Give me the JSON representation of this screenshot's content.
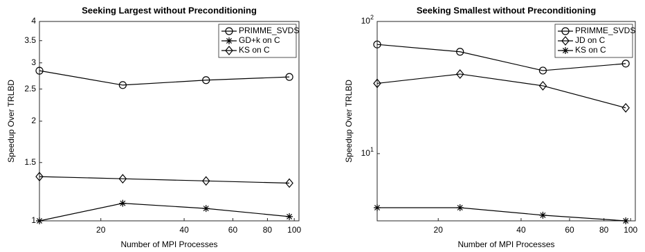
{
  "chart_data": [
    {
      "type": "line",
      "title": "Seeking Largest without Preconditioning",
      "xlabel": "Number of MPI Processes",
      "ylabel": "Speedup Over TRLBD",
      "x": [
        12,
        24,
        48,
        96
      ],
      "xscale": "log",
      "yscale": "log",
      "xlim": [
        12,
        104
      ],
      "xticks": [
        20,
        40,
        60,
        80,
        100
      ],
      "ylim": [
        1,
        4
      ],
      "yticks": [
        1,
        1.5,
        2,
        2.5,
        3,
        3.5,
        4
      ],
      "legend": "upper right",
      "series": [
        {
          "name": "PRIMME_SVDS",
          "color": "#000000",
          "marker": "circle",
          "values": [
            2.84,
            2.57,
            2.66,
            2.72
          ]
        },
        {
          "name": "GD+k on C",
          "color": "#000000",
          "marker": "asterisk",
          "values": [
            1.0,
            1.13,
            1.09,
            1.03
          ]
        },
        {
          "name": "KS on C",
          "color": "#000000",
          "marker": "diamond",
          "values": [
            1.36,
            1.34,
            1.32,
            1.3
          ]
        }
      ]
    },
    {
      "type": "line",
      "title": "Seeking Smallest without Preconditioning",
      "xlabel": "Number of MPI Processes",
      "ylabel": "Speedup Over TRLBD",
      "x": [
        12,
        24,
        48,
        96
      ],
      "xscale": "log",
      "yscale": "log",
      "xlim": [
        12,
        104
      ],
      "xticks": [
        20,
        40,
        60,
        80,
        100
      ],
      "ylim": [
        3.1,
        100
      ],
      "yticks": [
        {
          "value": 10,
          "label": "10^1"
        },
        {
          "value": 100,
          "label": "10^2"
        }
      ],
      "legend": "upper right",
      "series": [
        {
          "name": "PRIMME_SVDS",
          "color": "#000000",
          "marker": "circle",
          "values": [
            67,
            59,
            42.5,
            48
          ]
        },
        {
          "name": "JD on C",
          "color": "#000000",
          "marker": "diamond",
          "values": [
            34,
            40,
            32.6,
            22.2
          ]
        },
        {
          "name": "KS on C",
          "color": "#000000",
          "marker": "asterisk",
          "values": [
            3.9,
            3.9,
            3.42,
            3.1
          ]
        }
      ]
    }
  ]
}
